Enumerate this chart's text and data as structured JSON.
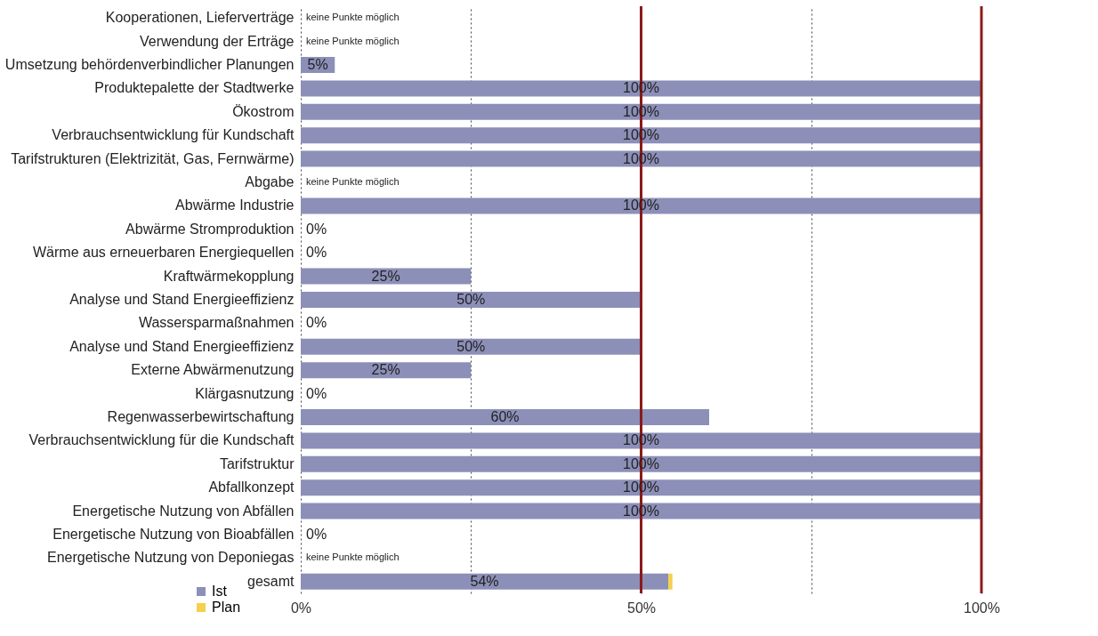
{
  "chart_data": {
    "type": "bar",
    "orientation": "horizontal",
    "stacked": true,
    "categories": [
      "Kooperationen, Lieferverträge",
      "Verwendung der Erträge",
      "Umsetzung behördenverbindlicher Planungen",
      "Produktepalette der Stadtwerke",
      "Ökostrom",
      "Verbrauchsentwicklung für Kundschaft",
      "Tarifstrukturen (Elektrizität, Gas, Fernwärme)",
      "Abgabe",
      "Abwärme Industrie",
      "Abwärme Stromproduktion",
      "Wärme aus erneuerbaren Energiequellen",
      "Kraftwärmekopplung",
      "Analyse und Stand Energieeffizienz",
      "Wassersparmaßnahmen",
      "Analyse und Stand Energieeffizienz",
      "Externe Abwärmenutzung",
      "Klärgasnutzung",
      "Regenwasserbewirtschaftung",
      "Verbrauchsentwicklung für die Kundschaft",
      "Tarifstruktur",
      "Abfallkonzept",
      "Energetische Nutzung von Abfällen",
      "Energetische Nutzung von Bioabfällen",
      "Energetische Nutzung von Deponiegas",
      "gesamt"
    ],
    "series": [
      {
        "name": "Ist",
        "color": "#8c8fb8",
        "values": [
          null,
          null,
          5,
          100,
          100,
          100,
          100,
          null,
          100,
          0,
          0,
          25,
          50,
          0,
          50,
          25,
          0,
          60,
          100,
          100,
          100,
          100,
          0,
          null,
          54
        ],
        "value_labels": [
          "keine Punkte möglich",
          "keine Punkte möglich",
          "5%",
          "100%",
          "100%",
          "100%",
          "100%",
          "keine Punkte möglich",
          "100%",
          "0%",
          "0%",
          "25%",
          "50%",
          "0%",
          "50%",
          "25%",
          "0%",
          "60%",
          "100%",
          "100%",
          "100%",
          "100%",
          "0%",
          "keine Punkte möglich",
          "54%"
        ]
      },
      {
        "name": "Plan",
        "color": "#f5d04a",
        "values": [
          null,
          null,
          null,
          null,
          null,
          null,
          null,
          null,
          null,
          null,
          null,
          null,
          null,
          null,
          null,
          null,
          null,
          null,
          null,
          null,
          null,
          null,
          null,
          null,
          0.6
        ]
      }
    ],
    "xlim": [
      0,
      100
    ],
    "xticks": [
      {
        "value": 0,
        "label": "0%"
      },
      {
        "value": 25,
        "label": null
      },
      {
        "value": 50,
        "label": "50%"
      },
      {
        "value": 75,
        "label": null
      },
      {
        "value": 100,
        "label": "100%"
      }
    ],
    "grid": "x",
    "ref_lines": [
      {
        "axis": "x",
        "value": 50,
        "color": "#8b1a1a"
      },
      {
        "axis": "x",
        "value": 100,
        "color": "#8b1a1a"
      }
    ],
    "legend": "bottom left"
  }
}
